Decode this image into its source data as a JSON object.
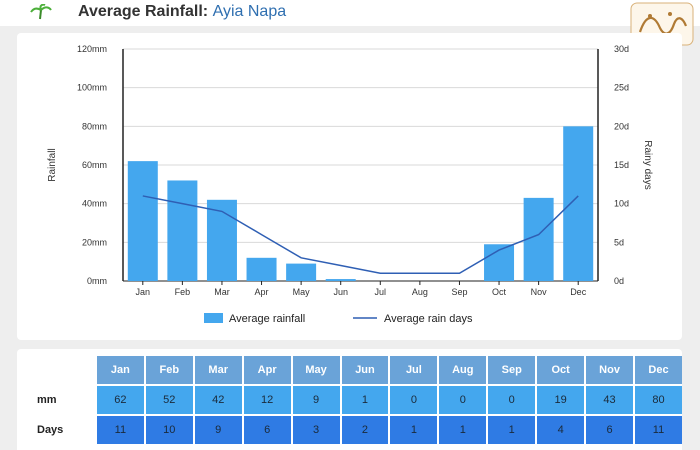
{
  "header": {
    "title": "Average Rainfall:",
    "location": "Ayia Napa"
  },
  "icons": {
    "logo": "palm-tree-icon",
    "brand": "arabic-calligraphy-logo"
  },
  "colors": {
    "bar": "#44a7ee",
    "line": "#2f5fb4",
    "month_header": "#6aa3d8",
    "mm_row": "#44a7ee",
    "days_row": "#2f7be4",
    "title_location": "#2f6fb0"
  },
  "chart_data": {
    "type": "bar",
    "categories": [
      "Jan",
      "Feb",
      "Mar",
      "Apr",
      "May",
      "Jun",
      "Jul",
      "Aug",
      "Sep",
      "Oct",
      "Nov",
      "Dec"
    ],
    "series": [
      {
        "name": "Average rainfall",
        "type": "bar",
        "axis": "left",
        "values": [
          62,
          52,
          42,
          12,
          9,
          1,
          0,
          0,
          0,
          19,
          43,
          80
        ]
      },
      {
        "name": "Average rain days",
        "type": "line",
        "axis": "right",
        "values": [
          11,
          10,
          9,
          6,
          3,
          2,
          1,
          1,
          1,
          4,
          6,
          11
        ]
      }
    ],
    "ylabel": "Rainfall",
    "y2label": "Rainy days",
    "ylim": [
      0,
      120
    ],
    "y2lim": [
      0,
      30
    ],
    "yticks": [
      "0mm",
      "20mm",
      "40mm",
      "60mm",
      "80mm",
      "100mm",
      "120mm"
    ],
    "y2ticks": [
      "0d",
      "5d",
      "10d",
      "15d",
      "20d",
      "25d",
      "30d"
    ],
    "grid": true,
    "legend_position": "bottom"
  },
  "table": {
    "months": [
      "Jan",
      "Feb",
      "Mar",
      "Apr",
      "May",
      "Jun",
      "Jul",
      "Aug",
      "Sep",
      "Oct",
      "Nov",
      "Dec"
    ],
    "rows": [
      {
        "label": "mm",
        "values": [
          "62",
          "52",
          "42",
          "12",
          "9",
          "1",
          "0",
          "0",
          "0",
          "19",
          "43",
          "80"
        ]
      },
      {
        "label": "Days",
        "values": [
          "11",
          "10",
          "9",
          "6",
          "3",
          "2",
          "1",
          "1",
          "1",
          "4",
          "6",
          "11"
        ]
      }
    ]
  }
}
